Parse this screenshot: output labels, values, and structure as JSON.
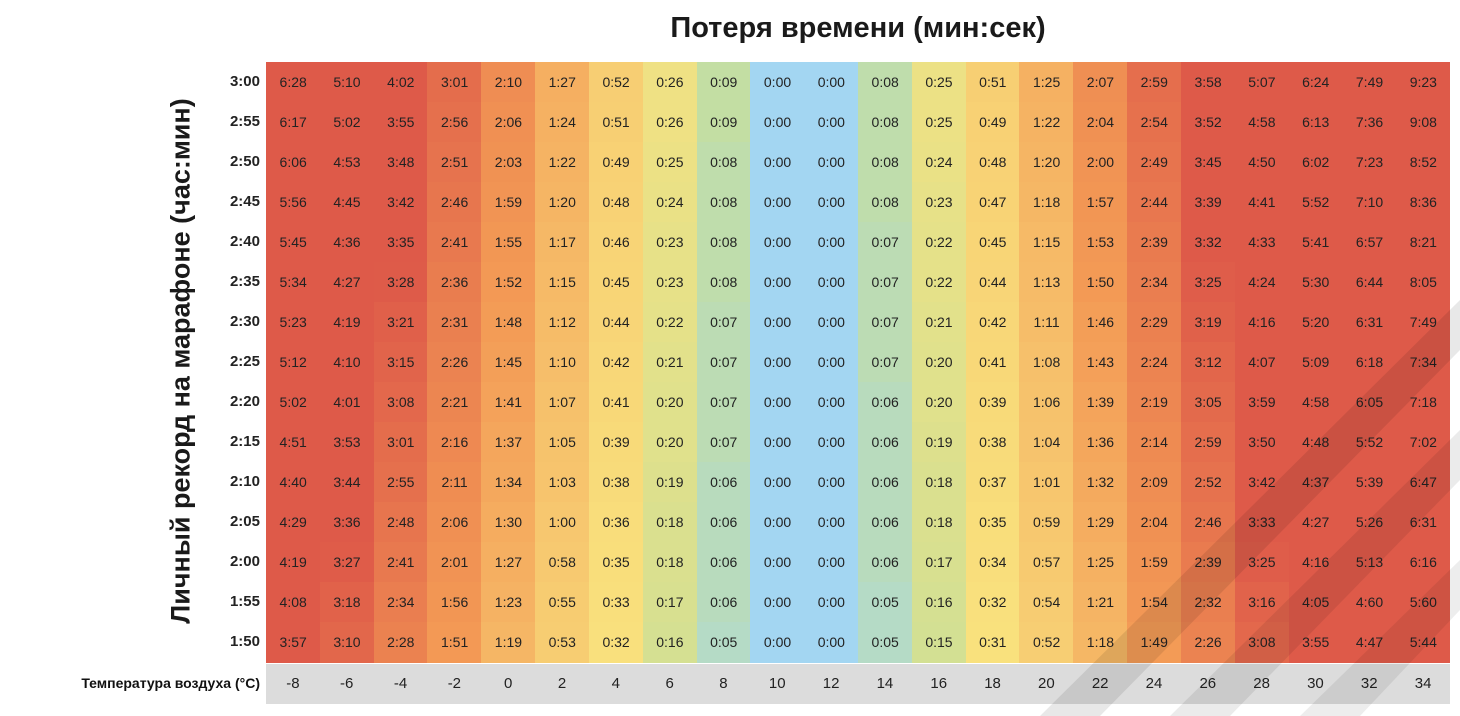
{
  "chart_data": {
    "type": "heatmap",
    "title": "Потеря времени (мин:сек)",
    "ylabel": "Личный рекорд на марафоне (час:мин)",
    "xlabel": "Температура воздуха (°C)",
    "x": [
      "-8",
      "-6",
      "-4",
      "-2",
      "0",
      "2",
      "4",
      "6",
      "8",
      "10",
      "12",
      "14",
      "16",
      "18",
      "20",
      "22",
      "24",
      "26",
      "28",
      "30",
      "32",
      "34"
    ],
    "y": [
      "3:00",
      "2:55",
      "2:50",
      "2:45",
      "2:40",
      "2:35",
      "2:30",
      "2:25",
      "2:20",
      "2:15",
      "2:10",
      "2:05",
      "2:00",
      "1:55",
      "1:50"
    ],
    "values": [
      [
        "6:28",
        "5:10",
        "4:02",
        "3:01",
        "2:10",
        "1:27",
        "0:52",
        "0:26",
        "0:09",
        "0:00",
        "0:00",
        "0:08",
        "0:25",
        "0:51",
        "1:25",
        "2:07",
        "2:59",
        "3:58",
        "5:07",
        "6:24",
        "7:49",
        "9:23"
      ],
      [
        "6:17",
        "5:02",
        "3:55",
        "2:56",
        "2:06",
        "1:24",
        "0:51",
        "0:26",
        "0:09",
        "0:00",
        "0:00",
        "0:08",
        "0:25",
        "0:49",
        "1:22",
        "2:04",
        "2:54",
        "3:52",
        "4:58",
        "6:13",
        "7:36",
        "9:08"
      ],
      [
        "6:06",
        "4:53",
        "3:48",
        "2:51",
        "2:03",
        "1:22",
        "0:49",
        "0:25",
        "0:08",
        "0:00",
        "0:00",
        "0:08",
        "0:24",
        "0:48",
        "1:20",
        "2:00",
        "2:49",
        "3:45",
        "4:50",
        "6:02",
        "7:23",
        "8:52"
      ],
      [
        "5:56",
        "4:45",
        "3:42",
        "2:46",
        "1:59",
        "1:20",
        "0:48",
        "0:24",
        "0:08",
        "0:00",
        "0:00",
        "0:08",
        "0:23",
        "0:47",
        "1:18",
        "1:57",
        "2:44",
        "3:39",
        "4:41",
        "5:52",
        "7:10",
        "8:36"
      ],
      [
        "5:45",
        "4:36",
        "3:35",
        "2:41",
        "1:55",
        "1:17",
        "0:46",
        "0:23",
        "0:08",
        "0:00",
        "0:00",
        "0:07",
        "0:22",
        "0:45",
        "1:15",
        "1:53",
        "2:39",
        "3:32",
        "4:33",
        "5:41",
        "6:57",
        "8:21"
      ],
      [
        "5:34",
        "4:27",
        "3:28",
        "2:36",
        "1:52",
        "1:15",
        "0:45",
        "0:23",
        "0:08",
        "0:00",
        "0:00",
        "0:07",
        "0:22",
        "0:44",
        "1:13",
        "1:50",
        "2:34",
        "3:25",
        "4:24",
        "5:30",
        "6:44",
        "8:05"
      ],
      [
        "5:23",
        "4:19",
        "3:21",
        "2:31",
        "1:48",
        "1:12",
        "0:44",
        "0:22",
        "0:07",
        "0:00",
        "0:00",
        "0:07",
        "0:21",
        "0:42",
        "1:11",
        "1:46",
        "2:29",
        "3:19",
        "4:16",
        "5:20",
        "6:31",
        "7:49"
      ],
      [
        "5:12",
        "4:10",
        "3:15",
        "2:26",
        "1:45",
        "1:10",
        "0:42",
        "0:21",
        "0:07",
        "0:00",
        "0:00",
        "0:07",
        "0:20",
        "0:41",
        "1:08",
        "1:43",
        "2:24",
        "3:12",
        "4:07",
        "5:09",
        "6:18",
        "7:34"
      ],
      [
        "5:02",
        "4:01",
        "3:08",
        "2:21",
        "1:41",
        "1:07",
        "0:41",
        "0:20",
        "0:07",
        "0:00",
        "0:00",
        "0:06",
        "0:20",
        "0:39",
        "1:06",
        "1:39",
        "2:19",
        "3:05",
        "3:59",
        "4:58",
        "6:05",
        "7:18"
      ],
      [
        "4:51",
        "3:53",
        "3:01",
        "2:16",
        "1:37",
        "1:05",
        "0:39",
        "0:20",
        "0:07",
        "0:00",
        "0:00",
        "0:06",
        "0:19",
        "0:38",
        "1:04",
        "1:36",
        "2:14",
        "2:59",
        "3:50",
        "4:48",
        "5:52",
        "7:02"
      ],
      [
        "4:40",
        "3:44",
        "2:55",
        "2:11",
        "1:34",
        "1:03",
        "0:38",
        "0:19",
        "0:06",
        "0:00",
        "0:00",
        "0:06",
        "0:18",
        "0:37",
        "1:01",
        "1:32",
        "2:09",
        "2:52",
        "3:42",
        "4:37",
        "5:39",
        "6:47"
      ],
      [
        "4:29",
        "3:36",
        "2:48",
        "2:06",
        "1:30",
        "1:00",
        "0:36",
        "0:18",
        "0:06",
        "0:00",
        "0:00",
        "0:06",
        "0:18",
        "0:35",
        "0:59",
        "1:29",
        "2:04",
        "2:46",
        "3:33",
        "4:27",
        "5:26",
        "6:31"
      ],
      [
        "4:19",
        "3:27",
        "2:41",
        "2:01",
        "1:27",
        "0:58",
        "0:35",
        "0:18",
        "0:06",
        "0:00",
        "0:00",
        "0:06",
        "0:17",
        "0:34",
        "0:57",
        "1:25",
        "1:59",
        "2:39",
        "3:25",
        "4:16",
        "5:13",
        "6:16"
      ],
      [
        "4:08",
        "3:18",
        "2:34",
        "1:56",
        "1:23",
        "0:55",
        "0:33",
        "0:17",
        "0:06",
        "0:00",
        "0:00",
        "0:05",
        "0:16",
        "0:32",
        "0:54",
        "1:21",
        "1:54",
        "2:32",
        "3:16",
        "4:05",
        "4:60",
        "5:60"
      ],
      [
        "3:57",
        "3:10",
        "2:28",
        "1:51",
        "1:19",
        "0:53",
        "0:32",
        "0:16",
        "0:05",
        "0:00",
        "0:00",
        "0:05",
        "0:15",
        "0:31",
        "0:52",
        "1:18",
        "1:49",
        "2:26",
        "3:08",
        "3:55",
        "4:47",
        "5:44"
      ]
    ],
    "colors": {
      "red": "#de5a49",
      "orange": "#f39a55",
      "yellow": "#f9e27e",
      "green": "#c6df9a",
      "blue": "#a3d6f2",
      "axis_band": "#dcdcdc"
    }
  }
}
